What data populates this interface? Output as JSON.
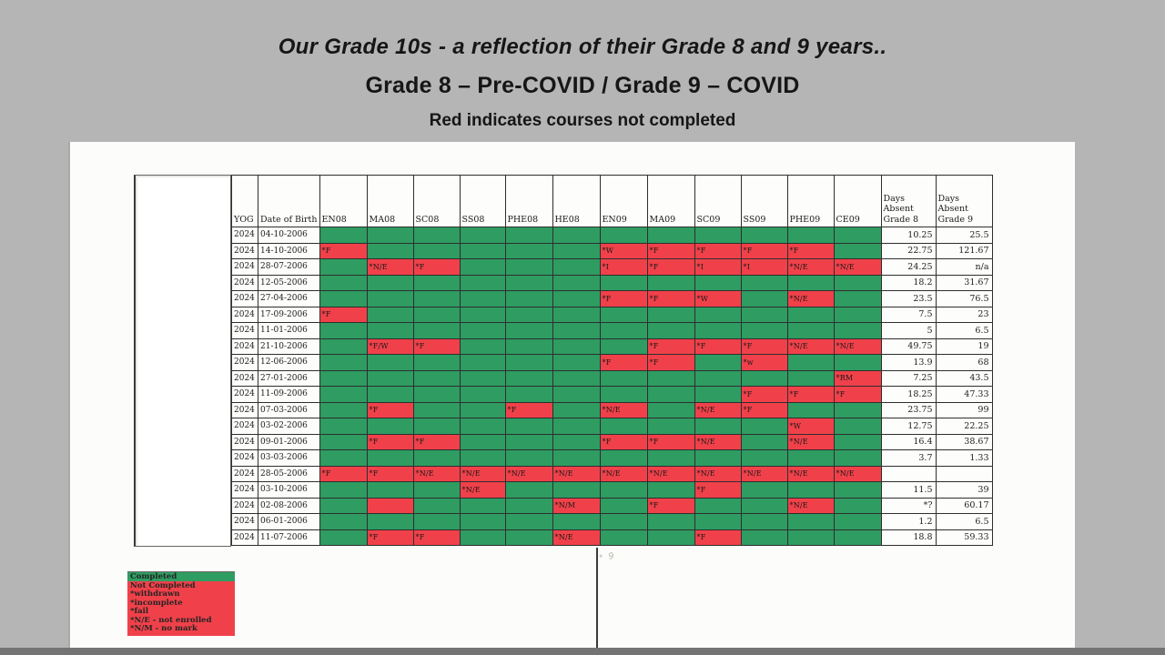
{
  "slide": {
    "title_line1": "Our Grade 10s - a reflection of their Grade 8 and 9 years..",
    "title_line2": "Grade 8 – Pre-COVID / Grade 9 – COVID",
    "title_line3": "Red indicates courses not completed"
  },
  "colors": {
    "slide_background": "#b5b5b5",
    "bottom_strip": "#747474",
    "page_white": "#fcfcfa",
    "completed_green": "#2f9c62",
    "not_completed_red": "#f0414a",
    "grid_line": "#2e2e2e"
  },
  "table": {
    "headers": {
      "yog": "YOG",
      "dob": "Date of Birth",
      "courses": [
        "EN08",
        "MA08",
        "SC08",
        "SS08",
        "PHE08",
        "HE08",
        "EN09",
        "MA09",
        "SC09",
        "SS09",
        "PHE09",
        "CE09"
      ],
      "days_absent_g8": "Days Absent Grade 8",
      "days_absent_g9": "Days Absent Grade 9"
    },
    "rows": [
      {
        "yog": "2024",
        "dob": "04-10-2006",
        "marks": [
          null,
          null,
          null,
          null,
          null,
          null,
          null,
          null,
          null,
          null,
          null,
          null
        ],
        "da8": "10.25",
        "da9": "25.5"
      },
      {
        "yog": "2024",
        "dob": "14-10-2006",
        "marks": [
          "*F",
          null,
          null,
          null,
          null,
          null,
          "*W",
          "*F",
          "*F",
          "*F",
          "*F",
          null
        ],
        "da8": "22.75",
        "da9": "121.67"
      },
      {
        "yog": "2024",
        "dob": "28-07-2006",
        "marks": [
          null,
          "*N/E",
          "*F",
          null,
          null,
          null,
          "*I",
          "*F",
          "*I",
          "*I",
          "*N/E",
          "*N/E"
        ],
        "da8": "24.25",
        "da9": "n/a"
      },
      {
        "yog": "2024",
        "dob": "12-05-2006",
        "marks": [
          null,
          null,
          null,
          null,
          null,
          null,
          null,
          null,
          null,
          null,
          null,
          null
        ],
        "da8": "18.2",
        "da9": "31.67"
      },
      {
        "yog": "2024",
        "dob": "27-04-2006",
        "marks": [
          null,
          null,
          null,
          null,
          null,
          null,
          "*F",
          "*F",
          "*W",
          null,
          "*N/E",
          null
        ],
        "da8": "23.5",
        "da9": "76.5"
      },
      {
        "yog": "2024",
        "dob": "17-09-2006",
        "marks": [
          "*F",
          null,
          null,
          null,
          null,
          null,
          null,
          null,
          null,
          null,
          null,
          null
        ],
        "da8": "7.5",
        "da9": "23"
      },
      {
        "yog": "2024",
        "dob": "11-01-2006",
        "marks": [
          null,
          null,
          null,
          null,
          null,
          null,
          null,
          null,
          null,
          null,
          null,
          null
        ],
        "da8": "5",
        "da9": "6.5"
      },
      {
        "yog": "2024",
        "dob": "21-10-2006",
        "marks": [
          null,
          "*F/W",
          "*F",
          null,
          null,
          null,
          null,
          "*F",
          "*F",
          "*F",
          "*N/E",
          "*N/E"
        ],
        "da8": "49.75",
        "da9": "19"
      },
      {
        "yog": "2024",
        "dob": "12-06-2006",
        "marks": [
          null,
          null,
          null,
          null,
          null,
          null,
          "*F",
          "*F",
          null,
          "*w",
          null,
          null
        ],
        "da8": "13.9",
        "da9": "68"
      },
      {
        "yog": "2024",
        "dob": "27-01-2006",
        "marks": [
          null,
          null,
          null,
          null,
          null,
          null,
          null,
          null,
          null,
          null,
          null,
          "*RM"
        ],
        "da8": "7.25",
        "da9": "43.5"
      },
      {
        "yog": "2024",
        "dob": "11-09-2006",
        "marks": [
          null,
          null,
          null,
          null,
          null,
          null,
          null,
          null,
          null,
          "*F",
          "*F",
          "*F"
        ],
        "da8": "18.25",
        "da9": "47.33"
      },
      {
        "yog": "2024",
        "dob": "07-03-2006",
        "marks": [
          null,
          "*F",
          null,
          null,
          "*F",
          null,
          "*N/E",
          null,
          "*N/E",
          "*F",
          null,
          null
        ],
        "da8": "23.75",
        "da9": "99"
      },
      {
        "yog": "2024",
        "dob": "03-02-2006",
        "marks": [
          null,
          null,
          null,
          null,
          null,
          null,
          null,
          null,
          null,
          null,
          "*W",
          null
        ],
        "da8": "12.75",
        "da9": "22.25"
      },
      {
        "yog": "2024",
        "dob": "09-01-2006",
        "marks": [
          null,
          "*F",
          "*F",
          null,
          null,
          null,
          "*F",
          "*F",
          "*N/E",
          null,
          "*N/E",
          null
        ],
        "da8": "16.4",
        "da9": "38.67"
      },
      {
        "yog": "2024",
        "dob": "03-03-2006",
        "marks": [
          null,
          null,
          null,
          null,
          null,
          null,
          null,
          null,
          null,
          null,
          null,
          null
        ],
        "da8": "3.7",
        "da9": "1.33"
      },
      {
        "yog": "2024",
        "dob": "28-05-2006",
        "marks": [
          "*F",
          "*F",
          "*N/E",
          "*N/E",
          "*N/E",
          "*N/E",
          "*N/E",
          "*N/E",
          "*N/E",
          "*N/E",
          "*N/E",
          "*N/E"
        ],
        "da8": "",
        "da9": ""
      },
      {
        "yog": "2024",
        "dob": "03-10-2006",
        "marks": [
          null,
          null,
          null,
          "*N/E",
          null,
          null,
          null,
          null,
          "*F",
          null,
          null,
          null
        ],
        "da8": "11.5",
        "da9": "39"
      },
      {
        "yog": "2024",
        "dob": "02-08-2006",
        "marks": [
          null,
          "",
          null,
          null,
          null,
          "*N/M",
          null,
          "*F",
          null,
          null,
          "*N/E",
          null
        ],
        "da8": "*?",
        "da9": "60.17"
      },
      {
        "yog": "2024",
        "dob": "06-01-2006",
        "marks": [
          null,
          null,
          null,
          null,
          null,
          null,
          null,
          null,
          null,
          null,
          null,
          null
        ],
        "da8": "1.2",
        "da9": "6.5"
      },
      {
        "yog": "2024",
        "dob": "11-07-2006",
        "marks": [
          null,
          "*F",
          "*F",
          null,
          null,
          "*N/E",
          null,
          null,
          "*F",
          null,
          null,
          null
        ],
        "da8": "18.8",
        "da9": "59.33"
      }
    ]
  },
  "legend": {
    "completed_label": "Completed",
    "red_lines": [
      "Not Completed",
      "*withdrawn",
      "*incomplete",
      "*fail",
      "*N/E - not enrolled",
      "*N/M - no mark"
    ]
  },
  "annotation": {
    "handwritten_mark": "* 9"
  }
}
